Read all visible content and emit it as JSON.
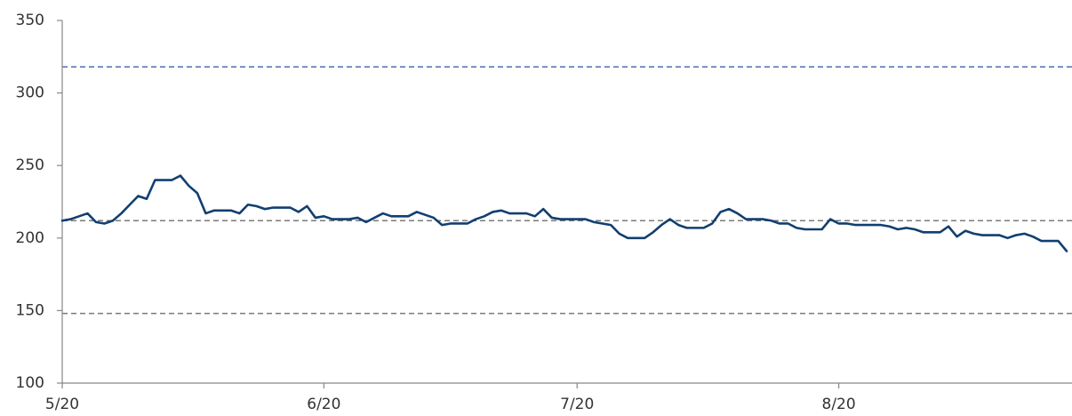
{
  "chart_data": {
    "type": "line",
    "categories": [
      "5/20",
      null,
      null,
      null,
      null,
      null,
      null,
      null,
      null,
      null,
      null,
      null,
      null,
      null,
      null,
      null,
      null,
      null,
      null,
      null,
      null,
      null,
      null,
      null,
      null,
      null,
      null,
      null,
      null,
      null,
      null,
      "6/20",
      null,
      null,
      null,
      null,
      null,
      null,
      null,
      null,
      null,
      null,
      null,
      null,
      null,
      null,
      null,
      null,
      null,
      null,
      null,
      null,
      null,
      null,
      null,
      null,
      null,
      null,
      null,
      null,
      null,
      "7/20",
      null,
      null,
      null,
      null,
      null,
      null,
      null,
      null,
      null,
      null,
      null,
      null,
      null,
      null,
      null,
      null,
      null,
      null,
      null,
      null,
      null,
      null,
      null,
      null,
      null,
      null,
      null,
      null,
      null,
      null,
      "8/20",
      null,
      null,
      null,
      null,
      null,
      null,
      null,
      null,
      null,
      null,
      null,
      null,
      null,
      null,
      null,
      null,
      null,
      null,
      null,
      null,
      null,
      null,
      null,
      null,
      null,
      null,
      null
    ],
    "series": [
      {
        "color": "#123f70",
        "values": [
          212,
          213,
          215,
          217,
          211,
          210,
          212,
          217,
          223,
          229,
          227,
          240,
          240,
          240,
          243,
          236,
          231,
          217,
          219,
          219,
          219,
          217,
          223,
          222,
          220,
          221,
          221,
          221,
          218,
          222,
          214,
          215,
          213,
          213,
          213,
          214,
          211,
          214,
          217,
          215,
          215,
          215,
          218,
          216,
          214,
          209,
          210,
          210,
          210,
          213,
          215,
          218,
          219,
          217,
          217,
          217,
          215,
          220,
          214,
          213,
          213,
          213,
          213,
          211,
          210,
          209,
          203,
          200,
          200,
          200,
          204,
          209,
          213,
          209,
          207,
          207,
          207,
          210,
          218,
          220,
          217,
          213,
          213,
          213,
          212,
          210,
          210,
          207,
          206,
          206,
          206,
          213,
          210,
          210,
          209,
          209,
          209,
          209,
          208,
          206,
          207,
          206,
          204,
          204,
          204,
          208,
          201,
          205,
          203,
          202,
          202,
          202,
          200,
          202,
          203,
          201,
          198,
          198,
          198,
          191
        ]
      }
    ],
    "reference_lines": [
      {
        "value": 318,
        "color": "#4a6db3"
      },
      {
        "value": 212,
        "color": "#7a7a7a"
      },
      {
        "value": 148,
        "color": "#7a7a7a"
      }
    ],
    "ylim": [
      100,
      350
    ],
    "yticks": [
      100,
      150,
      200,
      250,
      300,
      350
    ]
  }
}
